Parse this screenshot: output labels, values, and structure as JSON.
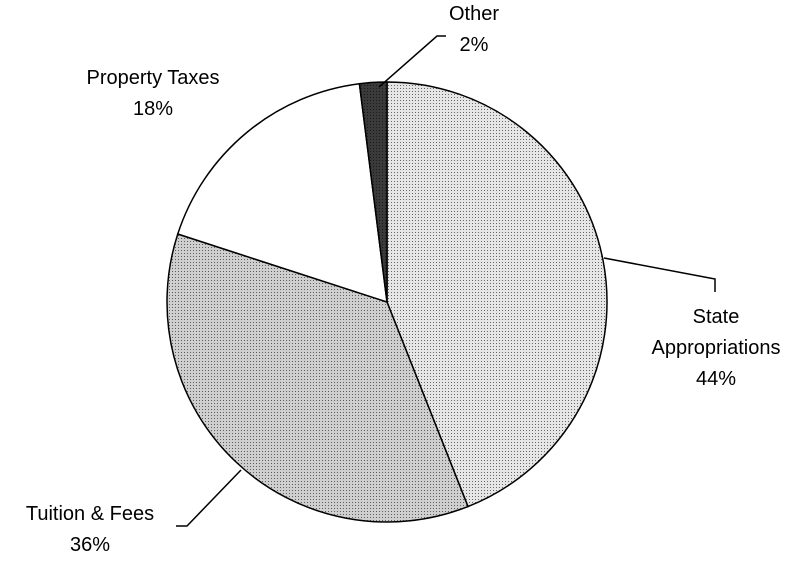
{
  "chart_data": {
    "type": "pie",
    "categories": [
      "State Appropriations",
      "Tuition & Fees",
      "Property Taxes",
      "Other"
    ],
    "values": [
      44,
      36,
      18,
      2
    ],
    "value_labels": [
      "44%",
      "36%",
      "18%",
      "2%"
    ],
    "colors": [
      "#e6e6e6",
      "#cfcfcf",
      "#ffffff",
      "#3a3a3a"
    ]
  }
}
